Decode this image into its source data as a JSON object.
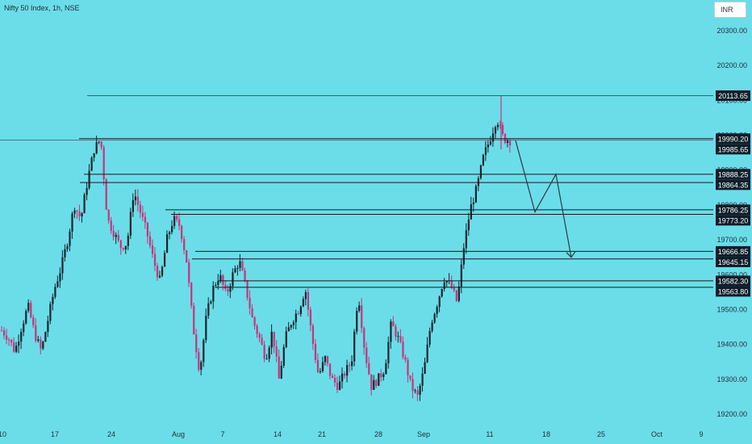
{
  "header": {
    "symbol_title": "Nifty 50 Index, 1h, NSE",
    "currency": "INR"
  },
  "colors": {
    "background": "#6bdde8",
    "candle_up": "#14252e",
    "candle_down": "#c8337a",
    "level_line": "#1a1a1a",
    "label_bg": "#0f1d29",
    "label_text": "#ffffff",
    "axis_text": "#22323e"
  },
  "chart_data": {
    "type": "candlestick",
    "title": "",
    "xlabel": "",
    "ylabel": "",
    "ylim": [
      19180,
      20420
    ],
    "y_ticks": [
      "20300.00",
      "20200.00",
      "20100.00",
      "20000.00",
      "19900.00",
      "19800.00",
      "19700.00",
      "19600.00",
      "19500.00",
      "19400.00",
      "19300.00",
      "19200.00"
    ],
    "x_ticks": [
      "10",
      "17",
      "24",
      "Aug",
      "7",
      "14",
      "21",
      "28",
      "Sep",
      "11",
      "18",
      "25",
      "Oct",
      "9"
    ],
    "price_levels": [
      {
        "label": "20113.65",
        "value": 20113.65
      },
      {
        "label": "19990.20",
        "value": 19990.2
      },
      {
        "label": "19985.65",
        "value": 19985.65
      },
      {
        "label": "19888.25",
        "value": 19888.25
      },
      {
        "label": "19864.35",
        "value": 19864.35
      },
      {
        "label": "19786.25",
        "value": 19786.25
      },
      {
        "label": "19773.20",
        "value": 19773.2
      },
      {
        "label": "19666.85",
        "value": 19666.85
      },
      {
        "label": "19645.15",
        "value": 19645.15
      },
      {
        "label": "19582.30",
        "value": 19582.3
      },
      {
        "label": "19563.80",
        "value": 19563.8
      }
    ],
    "projection_path": [
      19985,
      19780,
      19888,
      19650
    ],
    "price_path": [
      19440,
      19420,
      19380,
      19450,
      19510,
      19430,
      19380,
      19470,
      19560,
      19620,
      19700,
      19800,
      19760,
      19870,
      19960,
      19990,
      19760,
      19720,
      19680,
      19690,
      19840,
      19780,
      19720,
      19640,
      19580,
      19700,
      19760,
      19740,
      19640,
      19450,
      19320,
      19480,
      19560,
      19600,
      19540,
      19600,
      19640,
      19560,
      19470,
      19420,
      19360,
      19440,
      19300,
      19420,
      19470,
      19500,
      19560,
      19420,
      19310,
      19360,
      19300,
      19280,
      19320,
      19350,
      19550,
      19380,
      19280,
      19300,
      19330,
      19460,
      19420,
      19360,
      19280,
      19250,
      19330,
      19460,
      19520,
      19590,
      19570,
      19520,
      19680,
      19790,
      19850,
      19940,
      19990,
      20050,
      19990,
      19985
    ]
  }
}
